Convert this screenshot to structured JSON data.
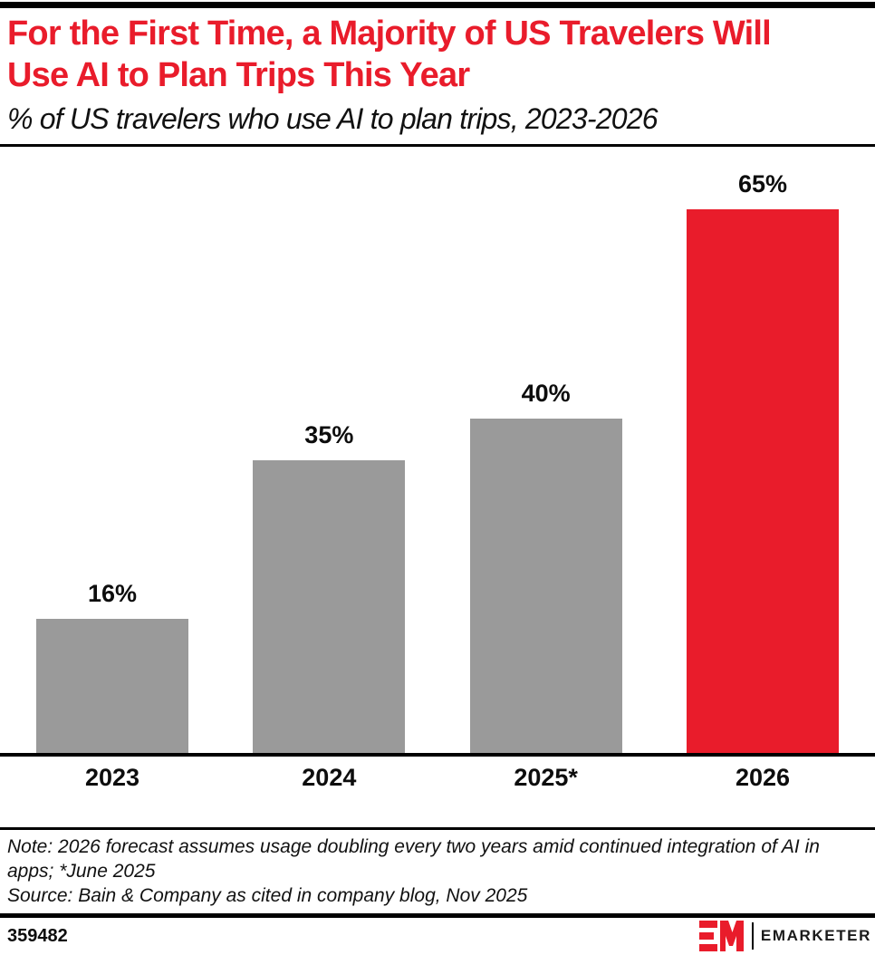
{
  "header": {
    "title_line1": "For the First Time, a Majority of US Travelers Will",
    "title_line2": "Use AI to Plan Trips This Year",
    "subtitle": "% of US travelers who use AI to plan trips, 2023-2026"
  },
  "chart_data": {
    "type": "bar",
    "title": "For the First Time, a Majority of US Travelers Will Use AI to Plan Trips This Year",
    "subtitle": "% of US travelers who use AI to plan trips, 2023-2026",
    "categories": [
      "2023",
      "2024",
      "2025*",
      "2026"
    ],
    "values": [
      16,
      35,
      40,
      65
    ],
    "value_labels": [
      "16%",
      "35%",
      "40%",
      "65%"
    ],
    "bar_colors": [
      "#9a9a9a",
      "#9a9a9a",
      "#9a9a9a",
      "#e91c2b"
    ],
    "unit": "percent",
    "ylim": [
      0,
      65
    ],
    "grid": false,
    "legend": "none",
    "data_label_position": "above-bar"
  },
  "notes": {
    "note": "Note: 2026 forecast assumes usage doubling every two years amid continued integration of AI in apps; *June 2025",
    "source": "Source: Bain & Company as cited in company blog, Nov 2025"
  },
  "footer": {
    "chart_id": "359482",
    "brand": "EMARKETER",
    "logo_icon": "emarketer-em-logo"
  },
  "colors": {
    "accent_red": "#e91c2b",
    "bar_gray": "#9a9a9a",
    "text_black": "#0d0d0d"
  }
}
